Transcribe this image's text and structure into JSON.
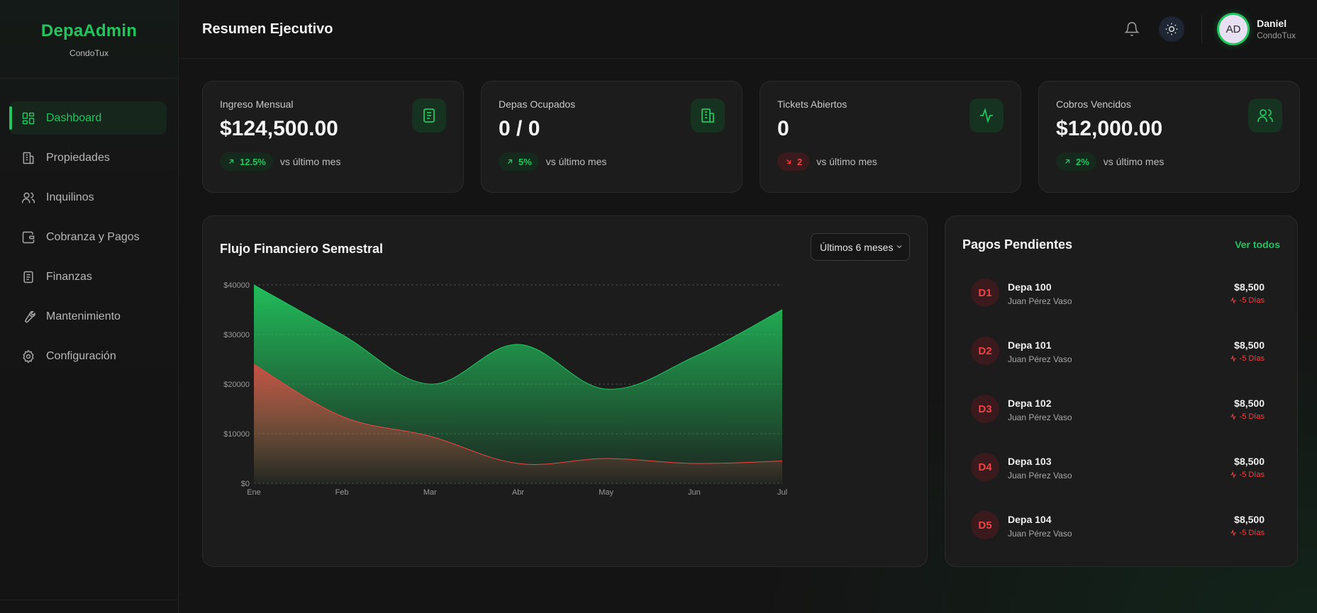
{
  "brand": {
    "title": "DepaAdmin",
    "subtitle": "CondoTux"
  },
  "sidebar": {
    "items": [
      {
        "label": "Dashboard",
        "icon": "dashboard-icon",
        "active": true
      },
      {
        "label": "Propiedades",
        "icon": "building-icon"
      },
      {
        "label": "Inquilinos",
        "icon": "users-icon"
      },
      {
        "label": "Cobranza y Pagos",
        "icon": "wallet-icon"
      },
      {
        "label": "Finanzas",
        "icon": "document-icon"
      },
      {
        "label": "Mantenimiento",
        "icon": "wrench-icon"
      },
      {
        "label": "Configuración",
        "icon": "gear-icon"
      }
    ]
  },
  "header": {
    "title": "Resumen Ejecutivo",
    "user": {
      "initials": "AD",
      "name": "Daniel",
      "org": "CondoTux"
    }
  },
  "kpis": [
    {
      "label": "Ingreso Mensual",
      "value": "$124,500.00",
      "trend": "12.5%",
      "direction": "up",
      "note": "vs último mes",
      "icon": "receipt-icon"
    },
    {
      "label": "Depas Ocupados",
      "value": "0 / 0",
      "trend": "5%",
      "direction": "up",
      "note": "vs último mes",
      "icon": "building-icon"
    },
    {
      "label": "Tickets Abiertos",
      "value": "0",
      "trend": "2",
      "direction": "down",
      "note": "vs último mes",
      "icon": "activity-icon"
    },
    {
      "label": "Cobros Vencidos",
      "value": "$12,000.00",
      "trend": "2%",
      "direction": "up",
      "note": "vs último mes",
      "icon": "users-icon"
    }
  ],
  "chart": {
    "title": "Flujo Financiero Semestral",
    "range": "Últimos 6 meses"
  },
  "chart_data": {
    "type": "area",
    "categories": [
      "Ene",
      "Feb",
      "Mar",
      "Abr",
      "May",
      "Jun",
      "Jul"
    ],
    "series": [
      {
        "values": [
          40000,
          30000,
          20000,
          28000,
          19000,
          25500,
          35000
        ],
        "color": "#22c55e"
      },
      {
        "values": [
          24000,
          13500,
          9500,
          4000,
          5000,
          4000,
          4500
        ],
        "color": "#ef4444"
      }
    ],
    "yticks": [
      "$0",
      "$10000",
      "$20000",
      "$30000",
      "$40000"
    ],
    "ylim": [
      0,
      40000
    ],
    "grid": true
  },
  "pending": {
    "title": "Pagos Pendientes",
    "view_all": "Ver todos",
    "items": [
      {
        "badge": "D1",
        "unit": "Depa 100",
        "tenant": "Juan Pérez Vaso",
        "amount": "$8,500",
        "days": "-5 Días"
      },
      {
        "badge": "D2",
        "unit": "Depa 101",
        "tenant": "Juan Pérez Vaso",
        "amount": "$8,500",
        "days": "-5 Días"
      },
      {
        "badge": "D3",
        "unit": "Depa 102",
        "tenant": "Juan Pérez Vaso",
        "amount": "$8,500",
        "days": "-5 Días"
      },
      {
        "badge": "D4",
        "unit": "Depa 103",
        "tenant": "Juan Pérez Vaso",
        "amount": "$8,500",
        "days": "-5 Días"
      },
      {
        "badge": "D5",
        "unit": "Depa 104",
        "tenant": "Juan Pérez Vaso",
        "amount": "$8,500",
        "days": "-5 Días"
      }
    ]
  },
  "colors": {
    "accent": "#22c55e",
    "danger": "#ef4444",
    "background": "#141414",
    "card": "#1c1c1c"
  }
}
